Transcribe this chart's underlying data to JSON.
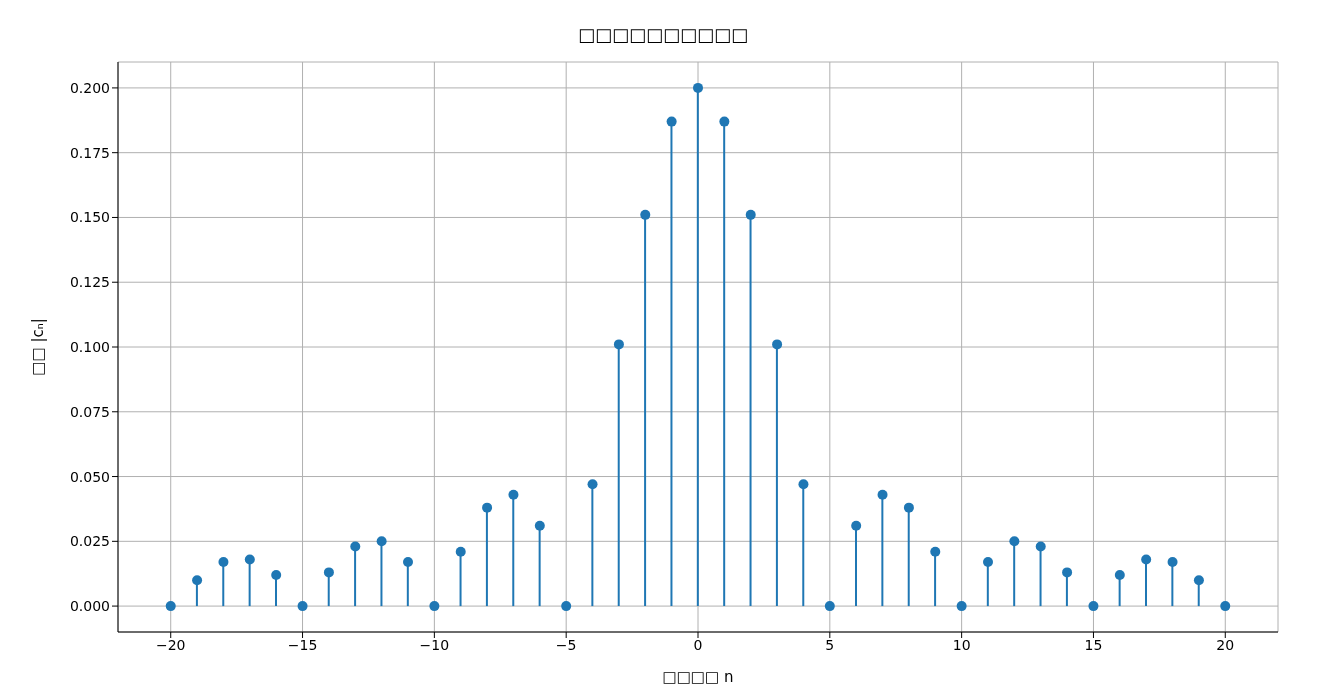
{
  "chart_data": {
    "type": "lollipop",
    "title": "□□□□□□□□□□",
    "xlabel": "□□□□ n",
    "ylabel": "□□ |cₙ|",
    "x": [
      -20,
      -19,
      -18,
      -17,
      -16,
      -15,
      -14,
      -13,
      -12,
      -11,
      -10,
      -9,
      -8,
      -7,
      -6,
      -5,
      -4,
      -3,
      -2,
      -1,
      0,
      1,
      2,
      3,
      4,
      5,
      6,
      7,
      8,
      9,
      10,
      11,
      12,
      13,
      14,
      15,
      16,
      17,
      18,
      19,
      20
    ],
    "values": [
      0,
      0.01,
      0.017,
      0.018,
      0.012,
      0,
      0.013,
      0.023,
      0.025,
      0.017,
      0,
      0.021,
      0.038,
      0.043,
      0.031,
      0,
      0.047,
      0.101,
      0.151,
      0.187,
      0.2,
      0.187,
      0.151,
      0.101,
      0.047,
      0,
      0.031,
      0.043,
      0.038,
      0.021,
      0,
      0.017,
      0.025,
      0.023,
      0.013,
      0,
      0.012,
      0.018,
      0.017,
      0.01,
      0
    ],
    "color": "#1f77b4",
    "marker": "circle",
    "grid": true,
    "xlim": [
      -22,
      22
    ],
    "xticks": [
      {
        "value": -20,
        "label": "−20"
      },
      {
        "value": -15,
        "label": "−15"
      },
      {
        "value": -10,
        "label": "−10"
      },
      {
        "value": -5,
        "label": "−5"
      },
      0,
      5,
      10,
      15,
      20
    ],
    "ylim": [
      -0.01,
      0.21
    ],
    "yticks": [
      {
        "value": 0,
        "label": "0.000"
      },
      {
        "value": 0.025,
        "label": "0.025"
      },
      {
        "value": 0.05,
        "label": "0.050"
      },
      {
        "value": 0.075,
        "label": "0.075"
      },
      {
        "value": 0.1,
        "label": "0.100"
      },
      {
        "value": 0.125,
        "label": "0.125"
      },
      {
        "value": 0.15,
        "label": "0.150"
      },
      {
        "value": 0.175,
        "label": "0.175"
      },
      {
        "value": 0.2,
        "label": "0.200"
      }
    ]
  }
}
